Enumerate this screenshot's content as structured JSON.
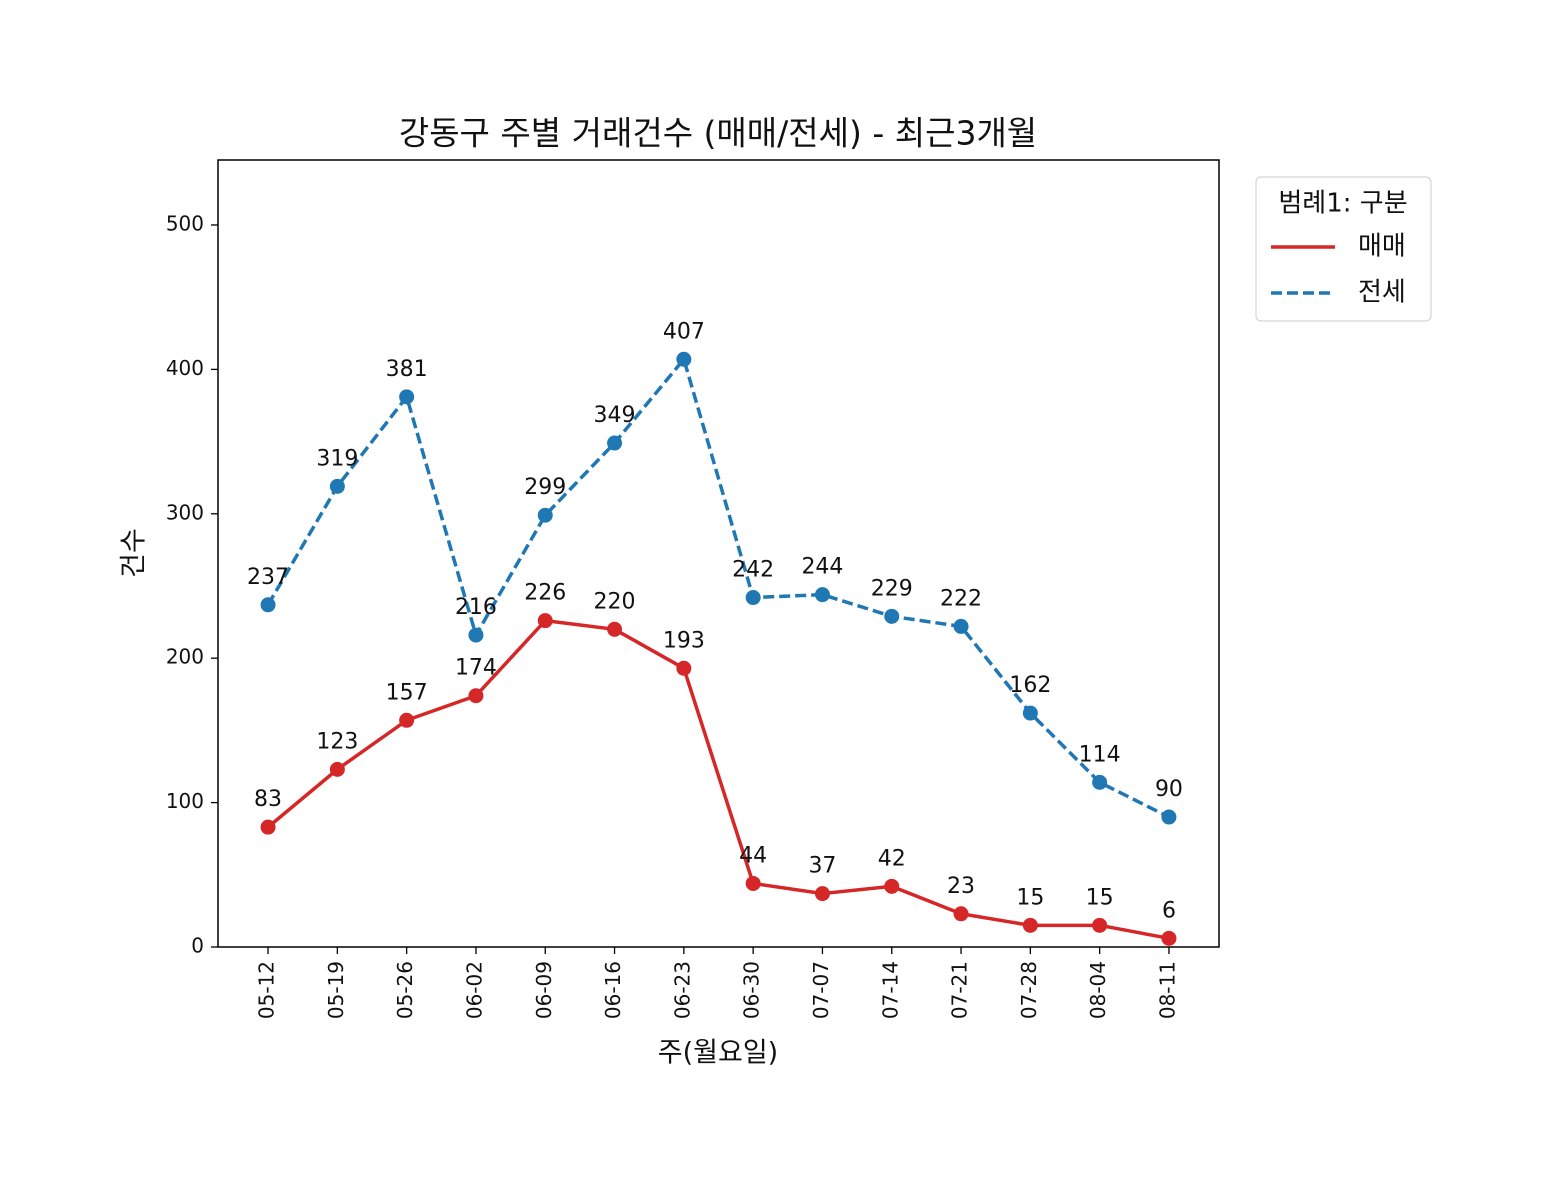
{
  "chart_data": {
    "type": "line",
    "title": "강동구 주별 거래건수 (매매/전세) - 최근3개월",
    "x_label": "주(월요일)",
    "y_label": "건수",
    "categories": [
      "05-12",
      "05-19",
      "05-26",
      "06-02",
      "06-09",
      "06-16",
      "06-23",
      "06-30",
      "07-07",
      "07-14",
      "07-21",
      "07-28",
      "08-04",
      "08-11"
    ],
    "series": [
      {
        "name": "매매",
        "color": "#d62728",
        "linestyle": "solid",
        "values": [
          83,
          123,
          157,
          174,
          226,
          220,
          193,
          44,
          37,
          42,
          23,
          15,
          15,
          6
        ]
      },
      {
        "name": "전세",
        "color": "#1f77b4",
        "linestyle": "dashed",
        "values": [
          237,
          319,
          381,
          216,
          299,
          349,
          407,
          242,
          244,
          229,
          222,
          162,
          114,
          90
        ]
      }
    ],
    "ylim": [
      0,
      545
    ],
    "yticks": [
      0,
      100,
      200,
      300,
      400,
      500
    ],
    "legend_title": "범례1: 구분",
    "legend_position": "outside-upper-right",
    "grid": false
  }
}
